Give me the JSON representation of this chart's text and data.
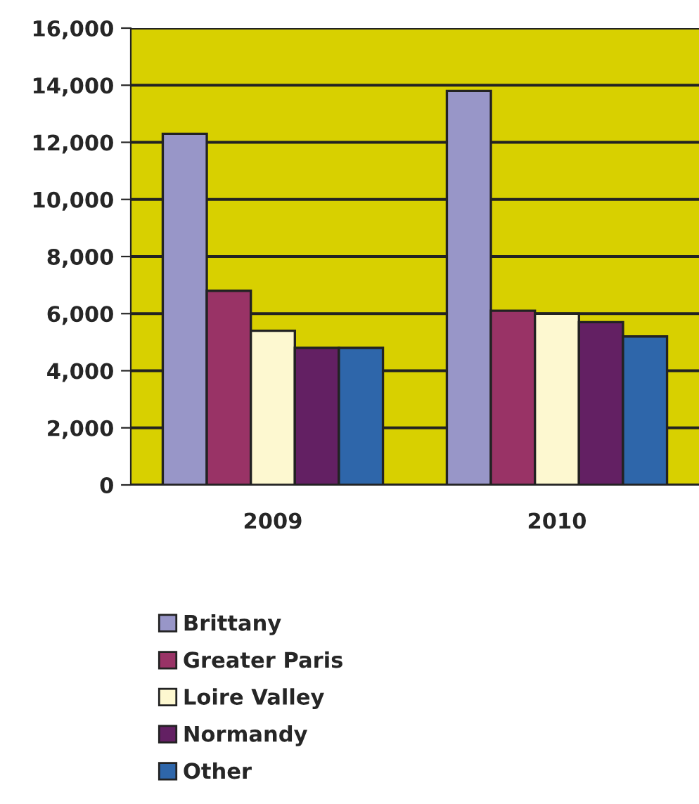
{
  "chart_data": {
    "type": "bar",
    "categories": [
      "2009",
      "2010"
    ],
    "series": [
      {
        "name": "Brittany",
        "color": "#9896c8",
        "values": [
          12300,
          13800
        ]
      },
      {
        "name": "Greater Paris",
        "color": "#993366",
        "values": [
          6800,
          6100
        ]
      },
      {
        "name": "Loire Valley",
        "color": "#fdf8d0",
        "values": [
          5400,
          6000
        ]
      },
      {
        "name": "Normandy",
        "color": "#632063",
        "values": [
          4800,
          5700
        ]
      },
      {
        "name": "Other",
        "color": "#2e66aa",
        "values": [
          4800,
          5200
        ]
      }
    ],
    "ylim": [
      0,
      16000
    ],
    "yticks": [
      {
        "value": 0,
        "label": "0"
      },
      {
        "value": 2000,
        "label": "2,000"
      },
      {
        "value": 4000,
        "label": "4,000"
      },
      {
        "value": 6000,
        "label": "6,000"
      },
      {
        "value": 8000,
        "label": "8,000"
      },
      {
        "value": 10000,
        "label": "10,000"
      },
      {
        "value": 12000,
        "label": "12,000"
      },
      {
        "value": 14000,
        "label": "14,000"
      },
      {
        "value": 16000,
        "label": "16,000"
      }
    ],
    "grid": "y",
    "legend": "bottom"
  }
}
